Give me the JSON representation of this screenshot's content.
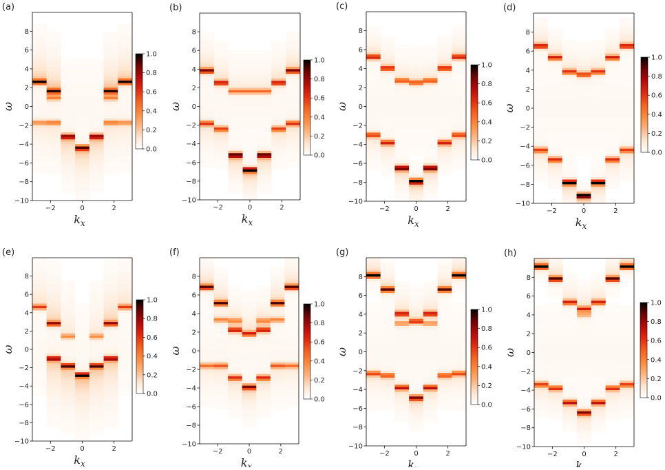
{
  "figure": {
    "xlabel": "k",
    "xlabel_sub": "x",
    "ylabel": "ω"
  },
  "colors": {
    "cmap": [
      "#ffffff",
      "#fde5cf",
      "#fdb37e",
      "#fc8a3c",
      "#f4601f",
      "#e02a10",
      "#b50a0a",
      "#6e0404",
      "#000000"
    ],
    "frame": "#000000"
  },
  "chart_data": [
    {
      "id": "a",
      "label": "(a)",
      "type": "heatmap",
      "xlim": [
        -3.14,
        3.14
      ],
      "ylim": [
        -10,
        10
      ],
      "xticks": [
        {
          "v": -2,
          "t": "−2"
        },
        {
          "v": 0,
          "t": "0"
        },
        {
          "v": 2,
          "t": "2"
        }
      ],
      "yticks": [
        {
          "v": 8,
          "t": "8"
        },
        {
          "v": 6,
          "t": "6"
        },
        {
          "v": 4,
          "t": "4"
        },
        {
          "v": 2,
          "t": "2"
        },
        {
          "v": 0,
          "t": "0"
        },
        {
          "v": -2,
          "t": "−2"
        },
        {
          "v": -4,
          "t": "−4"
        },
        {
          "v": -6,
          "t": "−6"
        },
        {
          "v": -8,
          "t": "−8"
        },
        {
          "v": -10,
          "t": "−10"
        }
      ],
      "colorbar": {
        "range": [
          0,
          1
        ],
        "ticks": [
          "1.0",
          "0.8",
          "0.6",
          "0.4",
          "0.2",
          "0.0"
        ]
      },
      "upper": [
        2.6,
        1.6,
        null,
        null,
        null,
        1.6,
        2.6
      ],
      "upper_secondary": [
        null,
        0.9,
        null,
        null,
        null,
        0.9,
        null
      ],
      "lower": [
        -1.7,
        -1.7,
        -3.2,
        -4.4,
        -3.2,
        -1.7,
        -1.7
      ],
      "peak": [
        0.75,
        0.7,
        0,
        0,
        0,
        0.7,
        0.75
      ],
      "lower_peak": [
        0.3,
        0.35,
        0.75,
        0.8,
        0.75,
        0.35,
        0.3
      ],
      "spread": 1.8
    },
    {
      "id": "b",
      "label": "(b)",
      "type": "heatmap",
      "xlim": [
        -3.14,
        3.14
      ],
      "ylim": [
        -10,
        10
      ],
      "xticks": [
        {
          "v": -2,
          "t": "−2"
        },
        {
          "v": 0,
          "t": "0"
        },
        {
          "v": 2,
          "t": "2"
        }
      ],
      "yticks": [
        {
          "v": 8,
          "t": "8"
        },
        {
          "v": 6,
          "t": "6"
        },
        {
          "v": 4,
          "t": "4"
        },
        {
          "v": 2,
          "t": "2"
        },
        {
          "v": 0,
          "t": "0"
        },
        {
          "v": -2,
          "t": "−2"
        },
        {
          "v": -4,
          "t": "−4"
        },
        {
          "v": -6,
          "t": "−6"
        },
        {
          "v": -8,
          "t": "−8"
        },
        {
          "v": -10,
          "t": "−10"
        }
      ],
      "colorbar": {
        "range": [
          0,
          1
        ],
        "ticks": [
          "1.0",
          "0.8",
          "0.6",
          "0.4",
          "0.2",
          "0.0"
        ]
      },
      "upper": [
        3.8,
        2.5,
        1.6,
        1.6,
        1.6,
        2.5,
        3.8
      ],
      "upper_secondary": [
        null,
        null,
        null,
        null,
        null,
        null,
        null
      ],
      "lower": [
        -1.8,
        -2.4,
        -5.2,
        -6.8,
        -5.2,
        -2.4,
        -1.8
      ],
      "peak": [
        0.7,
        0.6,
        0.35,
        0.35,
        0.35,
        0.6,
        0.7
      ],
      "lower_peak": [
        0.5,
        0.5,
        0.85,
        0.95,
        0.85,
        0.5,
        0.5
      ],
      "spread": 1.2
    },
    {
      "id": "c",
      "label": "(c)",
      "type": "heatmap",
      "xlim": [
        -3.14,
        3.14
      ],
      "ylim": [
        -10,
        10
      ],
      "xticks": [
        {
          "v": -2,
          "t": "−2"
        },
        {
          "v": 0,
          "t": "0"
        },
        {
          "v": 2,
          "t": "2"
        }
      ],
      "yticks": [
        {
          "v": 8,
          "t": "8"
        },
        {
          "v": 6,
          "t": "6"
        },
        {
          "v": 4,
          "t": "4"
        },
        {
          "v": 2,
          "t": "2"
        },
        {
          "v": 0,
          "t": "0"
        },
        {
          "v": -2,
          "t": "−2"
        },
        {
          "v": -4,
          "t": "−4"
        },
        {
          "v": -6,
          "t": "−6"
        },
        {
          "v": -8,
          "t": "−8"
        },
        {
          "v": -10,
          "t": "−10"
        }
      ],
      "colorbar": {
        "range": [
          0,
          1
        ],
        "ticks": [
          "1.0",
          "0.8",
          "0.6",
          "0.4",
          "0.2",
          "0.0"
        ]
      },
      "upper": [
        5.2,
        4.0,
        2.7,
        2.5,
        2.7,
        4.0,
        5.2
      ],
      "upper_secondary": [
        null,
        null,
        null,
        null,
        null,
        null,
        null
      ],
      "lower": [
        -3.0,
        -3.8,
        -6.5,
        -7.9,
        -6.5,
        -3.8,
        -3.0
      ],
      "peak": [
        0.6,
        0.55,
        0.45,
        0.45,
        0.45,
        0.55,
        0.6
      ],
      "lower_peak": [
        0.5,
        0.55,
        0.8,
        0.95,
        0.8,
        0.55,
        0.5
      ],
      "spread": 1.0
    },
    {
      "id": "d",
      "label": "(d)",
      "type": "heatmap",
      "xlim": [
        -3.14,
        3.14
      ],
      "ylim": [
        -10,
        10
      ],
      "xticks": [
        {
          "v": -2,
          "t": "−2"
        },
        {
          "v": 0,
          "t": "0"
        },
        {
          "v": 2,
          "t": "2"
        }
      ],
      "yticks": [
        {
          "v": 8,
          "t": "8"
        },
        {
          "v": 6,
          "t": "6"
        },
        {
          "v": 4,
          "t": "4"
        },
        {
          "v": 2,
          "t": "2"
        },
        {
          "v": 0,
          "t": "0"
        },
        {
          "v": -2,
          "t": "−2"
        },
        {
          "v": -4,
          "t": "−4"
        },
        {
          "v": -6,
          "t": "−6"
        },
        {
          "v": -8,
          "t": "−8"
        },
        {
          "v": -10,
          "t": "−10"
        }
      ],
      "colorbar": {
        "range": [
          0,
          1
        ],
        "ticks": [
          "1.0",
          "0.8",
          "0.6",
          "0.4",
          "0.2",
          "0.0"
        ]
      },
      "upper": [
        6.5,
        5.3,
        3.8,
        3.5,
        3.8,
        5.3,
        6.5
      ],
      "upper_secondary": [
        null,
        null,
        null,
        null,
        null,
        null,
        null
      ],
      "lower": [
        -4.4,
        -5.4,
        -7.8,
        -9.2,
        -7.8,
        -5.4,
        -4.4
      ],
      "peak": [
        0.6,
        0.55,
        0.5,
        0.5,
        0.5,
        0.55,
        0.6
      ],
      "lower_peak": [
        0.5,
        0.55,
        0.85,
        0.95,
        0.85,
        0.55,
        0.5
      ],
      "spread": 1.0
    },
    {
      "id": "e",
      "label": "(e)",
      "type": "heatmap",
      "xlim": [
        -3.14,
        3.14
      ],
      "ylim": [
        -10,
        10
      ],
      "xticks": [
        {
          "v": -2,
          "t": "−2"
        },
        {
          "v": 0,
          "t": "0"
        },
        {
          "v": 2,
          "t": "2"
        }
      ],
      "yticks": [
        {
          "v": 8,
          "t": "8"
        },
        {
          "v": 6,
          "t": "6"
        },
        {
          "v": 4,
          "t": "4"
        },
        {
          "v": 2,
          "t": "2"
        },
        {
          "v": 0,
          "t": "0"
        },
        {
          "v": -2,
          "t": "−2"
        },
        {
          "v": -4,
          "t": "−4"
        },
        {
          "v": -6,
          "t": "−6"
        },
        {
          "v": -8,
          "t": "−8"
        },
        {
          "v": -10,
          "t": "−10"
        }
      ],
      "colorbar": {
        "range": [
          0,
          1
        ],
        "ticks": [
          "1.0",
          "0.8",
          "0.6",
          "0.4",
          "0.2",
          "0.0"
        ]
      },
      "upper": [
        4.6,
        2.8,
        1.4,
        null,
        1.4,
        2.8,
        4.6
      ],
      "upper_secondary": [
        null,
        null,
        null,
        null,
        null,
        null,
        null
      ],
      "lower": [
        null,
        -1.0,
        -1.8,
        -2.8,
        -1.8,
        -1.0,
        null
      ],
      "peak": [
        0.45,
        0.65,
        0.3,
        0,
        0.3,
        0.65,
        0.45
      ],
      "lower_peak": [
        0,
        0.7,
        0.75,
        0.85,
        0.75,
        0.7,
        0
      ],
      "spread": 2.2
    },
    {
      "id": "f",
      "label": "(f)",
      "type": "heatmap",
      "xlim": [
        -3.14,
        3.14
      ],
      "ylim": [
        -10,
        10
      ],
      "xticks": [
        {
          "v": -2,
          "t": "−2"
        },
        {
          "v": 0,
          "t": "0"
        },
        {
          "v": 2,
          "t": "2"
        }
      ],
      "yticks": [
        {
          "v": 8,
          "t": "8"
        },
        {
          "v": 6,
          "t": "6"
        },
        {
          "v": 4,
          "t": "4"
        },
        {
          "v": 2,
          "t": "2"
        },
        {
          "v": 0,
          "t": "0"
        },
        {
          "v": -2,
          "t": "−2"
        },
        {
          "v": -4,
          "t": "−4"
        },
        {
          "v": -6,
          "t": "−6"
        },
        {
          "v": -8,
          "t": "−8"
        },
        {
          "v": -10,
          "t": "−10"
        }
      ],
      "colorbar": {
        "range": [
          0,
          1
        ],
        "ticks": [
          "1.0",
          "0.8",
          "0.6",
          "0.4",
          "0.2",
          "0.0"
        ]
      },
      "upper": [
        6.8,
        5.1,
        2.2,
        1.8,
        2.2,
        5.1,
        6.8
      ],
      "upper_secondary": [
        null,
        3.3,
        3.2,
        null,
        3.2,
        3.3,
        null
      ],
      "lower": [
        -1.6,
        -1.6,
        -2.9,
        -3.9,
        -2.9,
        -1.6,
        -1.6
      ],
      "peak": [
        0.75,
        0.7,
        0.6,
        0.55,
        0.6,
        0.7,
        0.75
      ],
      "lower_peak": [
        0.35,
        0.4,
        0.55,
        0.75,
        0.55,
        0.4,
        0.35
      ],
      "spread": 1.2
    },
    {
      "id": "g",
      "label": "(g)",
      "type": "heatmap",
      "xlim": [
        -3.14,
        3.14
      ],
      "ylim": [
        -10,
        10
      ],
      "xticks": [
        {
          "v": -2,
          "t": "−2"
        },
        {
          "v": 0,
          "t": "0"
        },
        {
          "v": 2,
          "t": "2"
        }
      ],
      "yticks": [
        {
          "v": 8,
          "t": "8"
        },
        {
          "v": 6,
          "t": "6"
        },
        {
          "v": 4,
          "t": "4"
        },
        {
          "v": 2,
          "t": "2"
        },
        {
          "v": 0,
          "t": "0"
        },
        {
          "v": -2,
          "t": "−2"
        },
        {
          "v": -4,
          "t": "−4"
        },
        {
          "v": -6,
          "t": "−6"
        },
        {
          "v": -8,
          "t": "−8"
        },
        {
          "v": -10,
          "t": "−10"
        }
      ],
      "colorbar": {
        "range": [
          0,
          1
        ],
        "ticks": [
          "1.0",
          "0.8",
          "0.6",
          "0.4",
          "0.2",
          "0.0"
        ]
      },
      "upper": [
        8.1,
        6.6,
        4.0,
        3.2,
        4.0,
        6.6,
        8.1
      ],
      "upper_secondary": [
        null,
        null,
        3.0,
        null,
        3.0,
        null,
        null
      ],
      "lower": [
        -2.3,
        -2.5,
        -3.8,
        -4.9,
        -3.8,
        -2.5,
        -2.3
      ],
      "peak": [
        0.8,
        0.7,
        0.6,
        0.55,
        0.6,
        0.7,
        0.8
      ],
      "lower_peak": [
        0.45,
        0.45,
        0.6,
        0.75,
        0.6,
        0.45,
        0.45
      ],
      "spread": 1.0
    },
    {
      "id": "h",
      "label": "(h)",
      "type": "heatmap",
      "xlim": [
        -3.14,
        3.14
      ],
      "ylim": [
        -10,
        10
      ],
      "xticks": [
        {
          "v": -2,
          "t": "−2"
        },
        {
          "v": 0,
          "t": "0"
        },
        {
          "v": 2,
          "t": "2"
        }
      ],
      "yticks": [
        {
          "v": 8,
          "t": "8"
        },
        {
          "v": 6,
          "t": "6"
        },
        {
          "v": 4,
          "t": "4"
        },
        {
          "v": 2,
          "t": "2"
        },
        {
          "v": 0,
          "t": "0"
        },
        {
          "v": -2,
          "t": "−2"
        },
        {
          "v": -4,
          "t": "−4"
        },
        {
          "v": -6,
          "t": "−6"
        },
        {
          "v": -8,
          "t": "−8"
        },
        {
          "v": -10,
          "t": "−10"
        }
      ],
      "colorbar": {
        "range": [
          0,
          1
        ],
        "ticks": [
          "1.0",
          "0.8",
          "0.6",
          "0.4",
          "0.2",
          "0.0"
        ]
      },
      "upper": [
        9.1,
        7.8,
        5.3,
        4.6,
        5.3,
        7.8,
        9.1
      ],
      "upper_secondary": [
        null,
        null,
        null,
        4.0,
        null,
        null,
        null
      ],
      "lower": [
        -3.4,
        -3.8,
        -5.3,
        -6.4,
        -5.3,
        -3.8,
        -3.4
      ],
      "peak": [
        0.85,
        0.75,
        0.55,
        0.5,
        0.55,
        0.75,
        0.85
      ],
      "lower_peak": [
        0.5,
        0.5,
        0.6,
        0.75,
        0.6,
        0.5,
        0.5
      ],
      "spread": 1.0
    }
  ]
}
